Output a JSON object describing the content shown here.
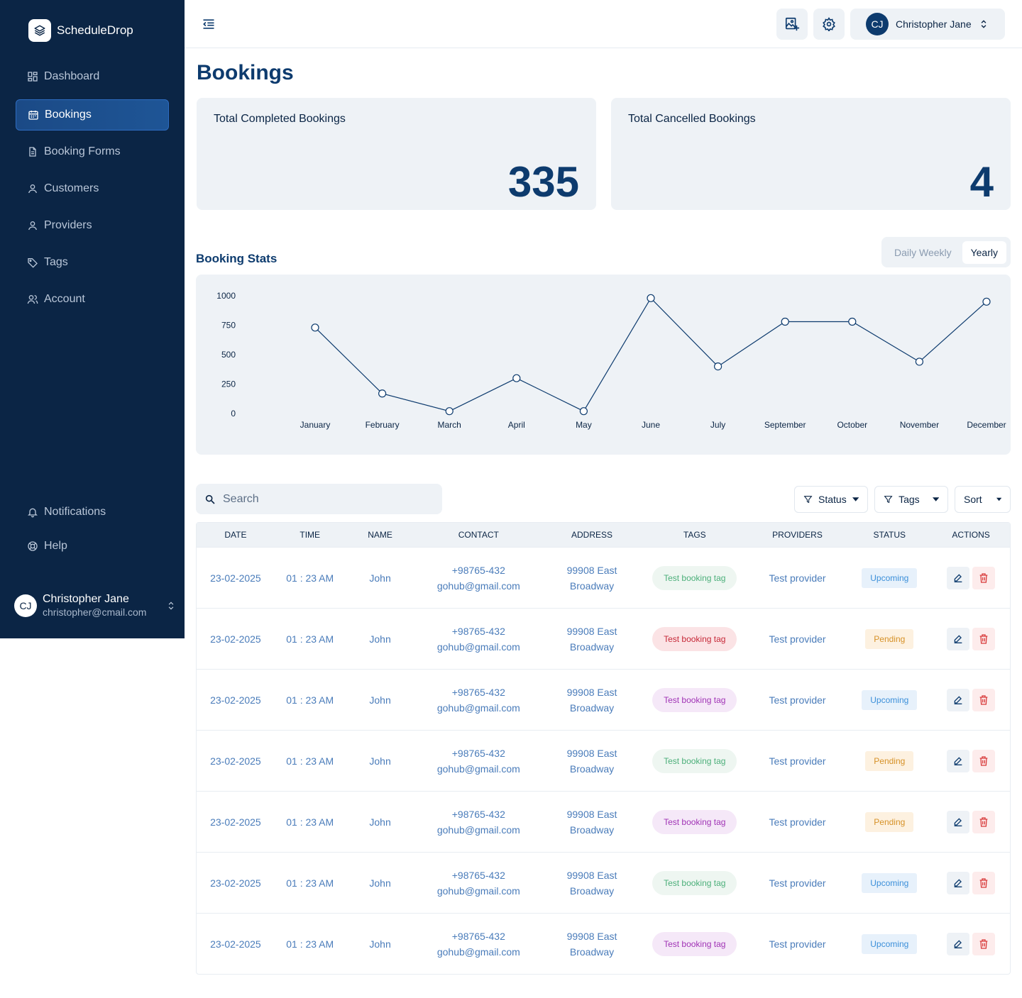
{
  "brand": {
    "name": "ScheduleDrop"
  },
  "sidebar": {
    "items": [
      {
        "label": "Dashboard"
      },
      {
        "label": "Bookings"
      },
      {
        "label": "Booking Forms"
      },
      {
        "label": "Customers"
      },
      {
        "label": "Providers"
      },
      {
        "label": "Tags"
      },
      {
        "label": "Account"
      }
    ],
    "bottom_items": [
      {
        "label": "Notifications"
      },
      {
        "label": "Help"
      }
    ],
    "user": {
      "initials": "CJ",
      "name": "Christopher Jane",
      "email": "christopher@cmail.com"
    }
  },
  "topbar": {
    "user": {
      "initials": "CJ",
      "name": "Christopher Jane"
    }
  },
  "page": {
    "title": "Bookings"
  },
  "stats": {
    "completed": {
      "label": "Total Completed Bookings",
      "value": "335"
    },
    "cancelled": {
      "label": "Total Cancelled Bookings",
      "value": "4"
    }
  },
  "booking_stats": {
    "title": "Booking Stats",
    "range_options": [
      "Daily",
      "Weekly",
      "Yearly"
    ],
    "range_inactive_label": "Daily Weekly",
    "range_selected": "Yearly"
  },
  "chart_data": {
    "type": "line",
    "title": "",
    "xlabel": "",
    "ylabel": "",
    "categories": [
      "January",
      "February",
      "March",
      "April",
      "May",
      "June",
      "July",
      "September",
      "October",
      "November",
      "December"
    ],
    "values": [
      730,
      170,
      20,
      300,
      20,
      980,
      400,
      780,
      780,
      440,
      950
    ],
    "yticks": [
      0,
      250,
      500,
      750,
      1000
    ],
    "ylim": [
      0,
      1000
    ],
    "grid": false,
    "line_color": "#0d3b6e"
  },
  "toolbar": {
    "search_placeholder": "Search",
    "filters": {
      "status": "Status",
      "tags": "Tags",
      "sort": "Sort"
    }
  },
  "table": {
    "columns": [
      "DATE",
      "TIME",
      "NAME",
      "CONTACT",
      "ADDRESS",
      "TAGS",
      "PROVIDERS",
      "STATUS",
      "ACTIONS"
    ],
    "rows": [
      {
        "date": "23-02-2025",
        "time": "01 : 23 AM",
        "name": "John",
        "phone": "+98765-432",
        "email": "gohub@gmail.com",
        "address1": "99908 East",
        "address2": "Broadway",
        "tag": "Test booking tag",
        "tag_color": "green",
        "provider": "Test provider",
        "status": "Upcoming",
        "status_type": "upcoming"
      },
      {
        "date": "23-02-2025",
        "time": "01 : 23 AM",
        "name": "John",
        "phone": "+98765-432",
        "email": "gohub@gmail.com",
        "address1": "99908 East",
        "address2": "Broadway",
        "tag": "Test booking tag",
        "tag_color": "red",
        "provider": "Test provider",
        "status": "Pending",
        "status_type": "pending"
      },
      {
        "date": "23-02-2025",
        "time": "01 : 23 AM",
        "name": "John",
        "phone": "+98765-432",
        "email": "gohub@gmail.com",
        "address1": "99908 East",
        "address2": "Broadway",
        "tag": "Test booking tag",
        "tag_color": "purple",
        "provider": "Test provider",
        "status": "Upcoming",
        "status_type": "upcoming"
      },
      {
        "date": "23-02-2025",
        "time": "01 : 23 AM",
        "name": "John",
        "phone": "+98765-432",
        "email": "gohub@gmail.com",
        "address1": "99908 East",
        "address2": "Broadway",
        "tag": "Test booking tag",
        "tag_color": "green",
        "provider": "Test provider",
        "status": "Pending",
        "status_type": "pending"
      },
      {
        "date": "23-02-2025",
        "time": "01 : 23 AM",
        "name": "John",
        "phone": "+98765-432",
        "email": "gohub@gmail.com",
        "address1": "99908 East",
        "address2": "Broadway",
        "tag": "Test booking tag",
        "tag_color": "purple",
        "provider": "Test provider",
        "status": "Pending",
        "status_type": "pending"
      },
      {
        "date": "23-02-2025",
        "time": "01 : 23 AM",
        "name": "John",
        "phone": "+98765-432",
        "email": "gohub@gmail.com",
        "address1": "99908 East",
        "address2": "Broadway",
        "tag": "Test booking tag",
        "tag_color": "green",
        "provider": "Test provider",
        "status": "Upcoming",
        "status_type": "upcoming"
      },
      {
        "date": "23-02-2025",
        "time": "01 : 23 AM",
        "name": "John",
        "phone": "+98765-432",
        "email": "gohub@gmail.com",
        "address1": "99908 East",
        "address2": "Broadway",
        "tag": "Test booking tag",
        "tag_color": "purple",
        "provider": "Test provider",
        "status": "Upcoming",
        "status_type": "upcoming"
      }
    ]
  },
  "colors": {
    "sidebar_bg": "#0b2545",
    "accent": "#0d3b6e",
    "panel_bg": "#eef2f6"
  },
  "icons": {
    "brand": "layers-icon",
    "dashboard": "grid-icon",
    "bookings": "calendar-icon",
    "booking_forms": "document-icon",
    "customers": "user-icon",
    "providers": "user-icon",
    "tags": "tag-icon",
    "account": "users-icon",
    "notifications": "bell-icon",
    "help": "lifebuoy-icon",
    "menu": "menu-collapse-icon",
    "image_add": "image-add-icon",
    "settings": "gear-icon",
    "search": "search-icon",
    "filter": "filter-icon",
    "edit": "pencil-icon",
    "delete": "trash-icon"
  }
}
